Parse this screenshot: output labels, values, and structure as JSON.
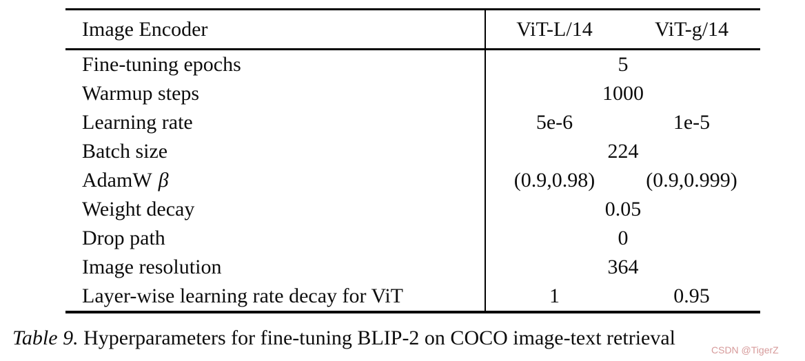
{
  "table": {
    "header": {
      "label": "Image Encoder",
      "col1": "ViT-L/14",
      "col2": "ViT-g/14"
    },
    "rows": [
      {
        "label": "Fine-tuning epochs",
        "span": "5"
      },
      {
        "label": "Warmup steps",
        "span": "1000"
      },
      {
        "label": "Learning rate",
        "col1": "5e-6",
        "col2": "1e-5"
      },
      {
        "label": "Batch size",
        "span": "224"
      },
      {
        "label": "AdamW",
        "label_symbol": "β",
        "col1": "(0.9,0.98)",
        "col2": "(0.9,0.999)"
      },
      {
        "label": "Weight decay",
        "span": "0.05"
      },
      {
        "label": "Drop path",
        "span": "0"
      },
      {
        "label": "Image resolution",
        "span": "364"
      },
      {
        "label": "Layer-wise learning rate decay for ViT",
        "col1": "1",
        "col2": "0.95"
      }
    ]
  },
  "caption": {
    "tag": "Table 9.",
    "text": "Hyperparameters for fine-tuning BLIP-2 on COCO image-text retrieval"
  },
  "watermark": "CSDN @TigerZ",
  "colors": {
    "text": "#0d0d0d",
    "rule": "#000000",
    "watermark": "#cb7d7d"
  }
}
